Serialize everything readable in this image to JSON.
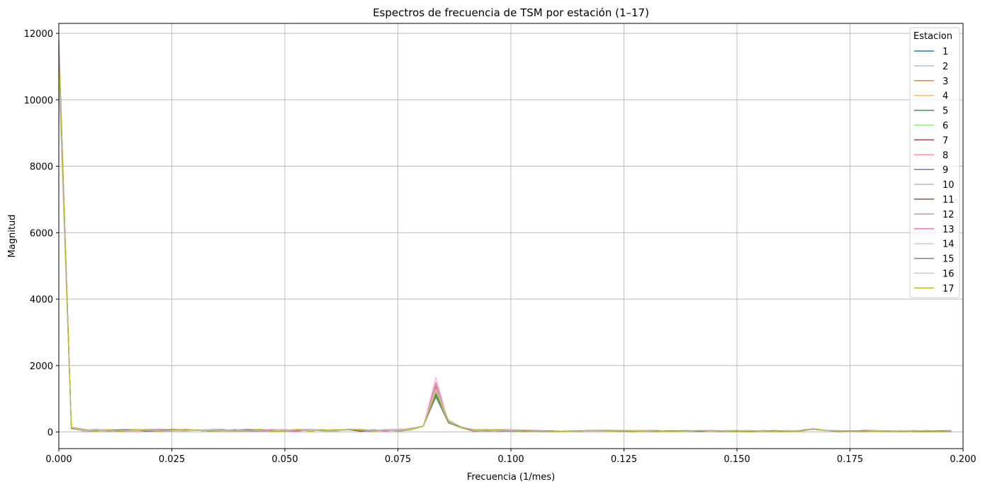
{
  "chart_data": {
    "type": "line",
    "title": "Espectros de frecuencia de TSM por estación (1–17)",
    "xlabel": "Frecuencia (1/mes)",
    "ylabel": "Magnitud",
    "xlim": [
      0,
      0.2
    ],
    "ylim": [
      -500,
      12300
    ],
    "xticks": [
      0,
      0.025,
      0.05,
      0.075,
      0.1,
      0.125,
      0.15,
      0.175,
      0.2
    ],
    "xtick_labels": [
      "0.000",
      "0.025",
      "0.050",
      "0.075",
      "0.100",
      "0.125",
      "0.150",
      "0.175",
      "0.200"
    ],
    "yticks": [
      0,
      2000,
      4000,
      6000,
      8000,
      10000,
      12000
    ],
    "ytick_labels": [
      "0",
      "2000",
      "4000",
      "6000",
      "8000",
      "10000",
      "12000"
    ],
    "grid": true,
    "legend_title": "Estacion",
    "legend_position": "top-right",
    "x_step": 0.00278,
    "dc_values": [
      11800,
      11000,
      11500,
      10800,
      11200,
      10900,
      11600,
      11100,
      11400,
      10700,
      11300,
      10950,
      11700,
      11050,
      11250,
      10850,
      11500
    ],
    "annual_peak": {
      "x": 0.0833,
      "values": [
        1150,
        1300,
        1250,
        1450,
        1100,
        1200,
        1350,
        1400,
        1300,
        1250,
        1200,
        1450,
        1500,
        1650,
        1050,
        1300,
        1200
      ]
    },
    "series": [
      {
        "name": "1",
        "color": "#1f77b4"
      },
      {
        "name": "2",
        "color": "#aec7e8"
      },
      {
        "name": "3",
        "color": "#ff7f0e"
      },
      {
        "name": "4",
        "color": "#ffbb78"
      },
      {
        "name": "5",
        "color": "#2ca02c"
      },
      {
        "name": "6",
        "color": "#98df8a"
      },
      {
        "name": "7",
        "color": "#d62728"
      },
      {
        "name": "8",
        "color": "#ff9896"
      },
      {
        "name": "9",
        "color": "#9467bd"
      },
      {
        "name": "10",
        "color": "#c5b0d5"
      },
      {
        "name": "11",
        "color": "#8c564b"
      },
      {
        "name": "12",
        "color": "#c49c94"
      },
      {
        "name": "13",
        "color": "#e377c2"
      },
      {
        "name": "14",
        "color": "#f7b6d2"
      },
      {
        "name": "15",
        "color": "#7f7f7f"
      },
      {
        "name": "16",
        "color": "#c7c7c7"
      },
      {
        "name": "17",
        "color": "#bcbd22"
      }
    ]
  }
}
